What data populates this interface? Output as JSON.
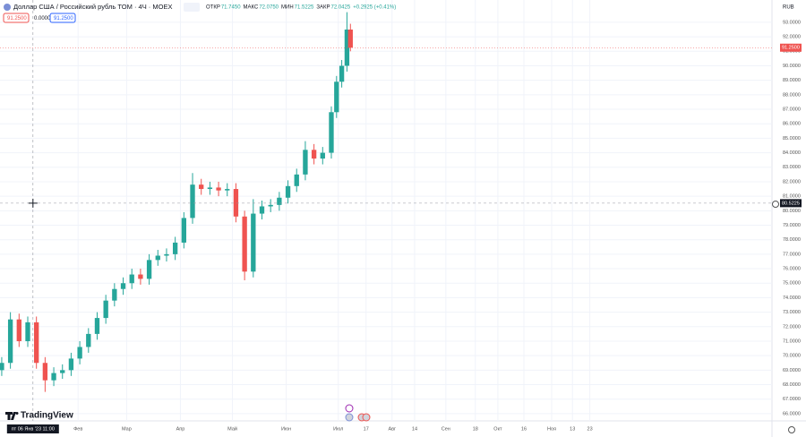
{
  "chart_data": {
    "type": "candlestick",
    "title": "Доллар США / Российский рубль TOM · 4Ч · MOEX",
    "ohlc_legend": [
      {
        "label": "ОТКР",
        "value": "71.7450"
      },
      {
        "label": "МАКС",
        "value": "72.0750"
      },
      {
        "label": "МИН",
        "value": "71.5225"
      },
      {
        "label": "ЗАКР",
        "value": "72.0425"
      }
    ],
    "change": "+0.2925 (+0.41%)",
    "indicator_boxes": [
      "91.2500",
      "0.0000",
      "91.2500"
    ],
    "currency": "RUB",
    "logo": "TradingView",
    "up_color": "#26a69a",
    "down_color": "#ef5350",
    "x": [
      -12,
      -7,
      -2,
      3,
      8,
      13,
      18,
      23,
      28,
      33,
      38,
      43,
      48,
      53,
      58,
      63,
      68,
      73,
      78,
      83,
      88,
      93,
      98,
      103,
      108,
      113,
      118,
      123,
      128,
      133,
      138,
      143,
      148,
      153,
      158,
      163,
      168,
      173,
      178,
      181,
      184,
      187,
      189
    ],
    "open": [
      69.0,
      69.5,
      72.5,
      71.0,
      72.3,
      69.5,
      68.3,
      68.8,
      69.0,
      69.8,
      70.6,
      71.5,
      72.6,
      73.8,
      74.6,
      75.0,
      75.6,
      75.3,
      76.6,
      76.9,
      77.0,
      77.8,
      79.5,
      81.8,
      81.5,
      81.6,
      81.4,
      81.5,
      79.6,
      75.8,
      79.8,
      80.3,
      80.4,
      80.9,
      81.7,
      82.5,
      84.2,
      83.6,
      84.0,
      86.8,
      88.9,
      90.0,
      92.5
    ],
    "high": [
      69.9,
      73.0,
      72.9,
      72.7,
      72.7,
      69.9,
      69.2,
      69.4,
      70.2,
      71.0,
      71.9,
      73.0,
      74.2,
      75.0,
      75.4,
      76.0,
      76.0,
      77.0,
      77.3,
      77.4,
      78.2,
      79.9,
      82.6,
      82.2,
      82.0,
      82.0,
      81.9,
      81.9,
      80.0,
      80.8,
      80.7,
      80.8,
      81.3,
      82.1,
      82.9,
      84.8,
      84.6,
      84.4,
      87.2,
      89.3,
      90.4,
      93.7,
      92.9
    ],
    "low": [
      68.6,
      69.1,
      70.6,
      70.6,
      69.1,
      67.5,
      67.9,
      68.4,
      68.6,
      69.4,
      70.2,
      71.1,
      72.2,
      73.4,
      74.2,
      74.6,
      74.9,
      74.9,
      76.2,
      76.5,
      76.6,
      77.4,
      79.1,
      81.1,
      81.1,
      81.0,
      81.0,
      79.2,
      75.2,
      75.4,
      79.4,
      79.9,
      80.0,
      80.5,
      81.3,
      82.1,
      83.2,
      83.2,
      83.6,
      86.4,
      88.5,
      89.6,
      91.0
    ],
    "close": [
      69.5,
      72.5,
      71.0,
      72.3,
      69.5,
      68.3,
      68.8,
      69.0,
      69.8,
      70.6,
      71.5,
      72.6,
      73.8,
      74.6,
      75.0,
      75.6,
      75.3,
      76.6,
      76.9,
      77.0,
      77.8,
      79.5,
      81.8,
      81.5,
      81.6,
      81.4,
      81.5,
      79.6,
      75.8,
      79.8,
      80.3,
      80.4,
      80.9,
      81.7,
      82.5,
      84.2,
      83.6,
      84.0,
      86.8,
      88.9,
      90.0,
      92.5,
      91.25
    ],
    "xlim": [
      -13,
      432
    ],
    "ylim": [
      65.5,
      94.54
    ],
    "xticks": [
      {
        "value": 32,
        "label": "Фев"
      },
      {
        "value": 60,
        "label": "Мар"
      },
      {
        "value": 91,
        "label": "Апр"
      },
      {
        "value": 121,
        "label": "Май"
      },
      {
        "value": 152,
        "label": "Июн"
      },
      {
        "value": 182,
        "label": "Июл"
      },
      {
        "value": 198,
        "label": "17"
      },
      {
        "value": 213,
        "label": "Авг"
      },
      {
        "value": 226,
        "label": "14"
      },
      {
        "value": 244,
        "label": "Сен"
      },
      {
        "value": 261,
        "label": "18"
      },
      {
        "value": 274,
        "label": "Окт"
      },
      {
        "value": 289,
        "label": "16"
      },
      {
        "value": 305,
        "label": "Ноя"
      },
      {
        "value": 317,
        "label": "13"
      },
      {
        "value": 327,
        "label": "23"
      }
    ],
    "yticks": [
      {
        "value": 66,
        "label": "66.0000"
      },
      {
        "value": 67,
        "label": "67.0000"
      },
      {
        "value": 68,
        "label": "68.0000"
      },
      {
        "value": 69,
        "label": "69.0000"
      },
      {
        "value": 70,
        "label": "70.0000"
      },
      {
        "value": 71,
        "label": "71.0000"
      },
      {
        "value": 72,
        "label": "72.0000"
      },
      {
        "value": 73,
        "label": "73.0000"
      },
      {
        "value": 74,
        "label": "74.0000"
      },
      {
        "value": 75,
        "label": "75.0000"
      },
      {
        "value": 76,
        "label": "76.0000"
      },
      {
        "value": 77,
        "label": "77.0000"
      },
      {
        "value": 78,
        "label": "78.0000"
      },
      {
        "value": 79,
        "label": "79.0000"
      },
      {
        "value": 80,
        "label": "80.0000"
      },
      {
        "value": 81,
        "label": "81.0000"
      },
      {
        "value": 82,
        "label": "82.0000"
      },
      {
        "value": 83,
        "label": "83.0000"
      },
      {
        "value": 84,
        "label": "84.0000"
      },
      {
        "value": 85,
        "label": "85.0000"
      },
      {
        "value": 86,
        "label": "86.0000"
      },
      {
        "value": 87,
        "label": "87.0000"
      },
      {
        "value": 88,
        "label": "88.0000"
      },
      {
        "value": 89,
        "label": "89.0000"
      },
      {
        "value": 90,
        "label": "90.0000"
      },
      {
        "value": 91,
        "label": "91.0000"
      },
      {
        "value": 92,
        "label": "92.0000"
      },
      {
        "value": 93,
        "label": "93.0000"
      }
    ],
    "grid": true,
    "last_price": {
      "value": 91.25,
      "label": "91.2500"
    },
    "crosshair": {
      "x": {
        "value": 6,
        "label": "пт 06 Янв '23 11:00"
      },
      "y": 80.5225
    }
  }
}
